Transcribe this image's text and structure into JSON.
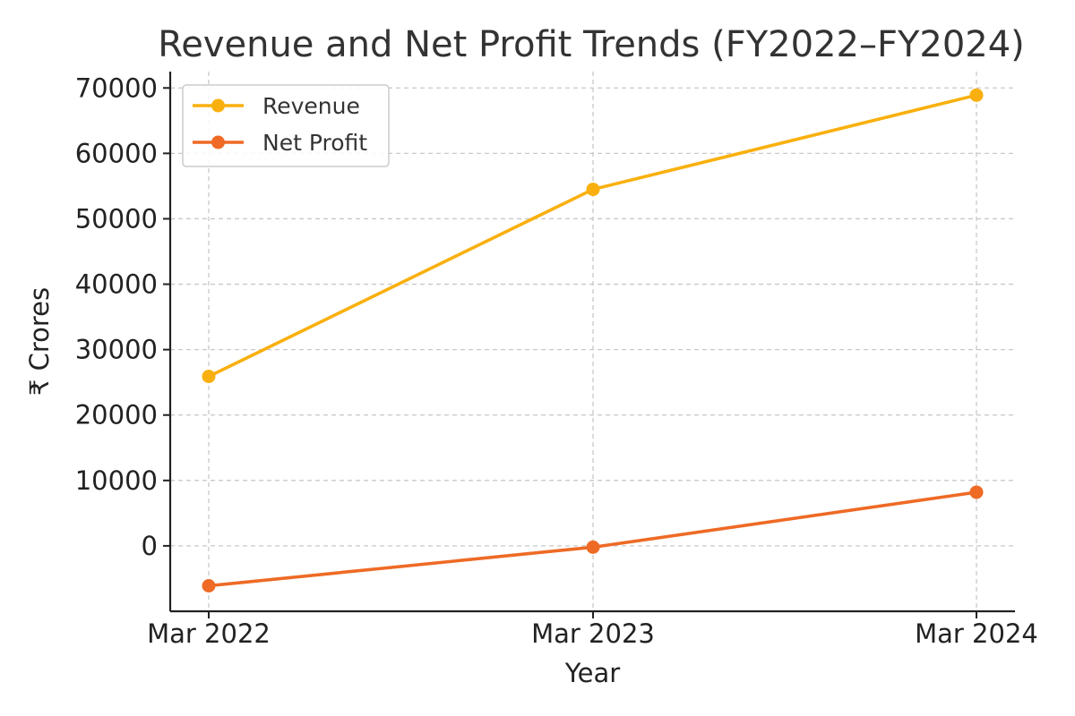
{
  "chart_data": {
    "type": "line",
    "title": "Revenue and Net Profit Trends (FY2022–FY2024)",
    "xlabel": "Year",
    "ylabel": "₹ Crores",
    "categories": [
      "Mar 2022",
      "Mar 2023",
      "Mar 2024"
    ],
    "series": [
      {
        "name": "Revenue",
        "values": [
          25900,
          54500,
          68900
        ],
        "color": "#F9B00E"
      },
      {
        "name": "Net Profit",
        "values": [
          -6100,
          -200,
          8200
        ],
        "color": "#EE6A25"
      }
    ],
    "ylim": [
      -10000,
      72500
    ],
    "yticks": [
      0,
      10000,
      20000,
      30000,
      40000,
      50000,
      60000,
      70000
    ],
    "grid": true,
    "legend_position": "top-left"
  }
}
